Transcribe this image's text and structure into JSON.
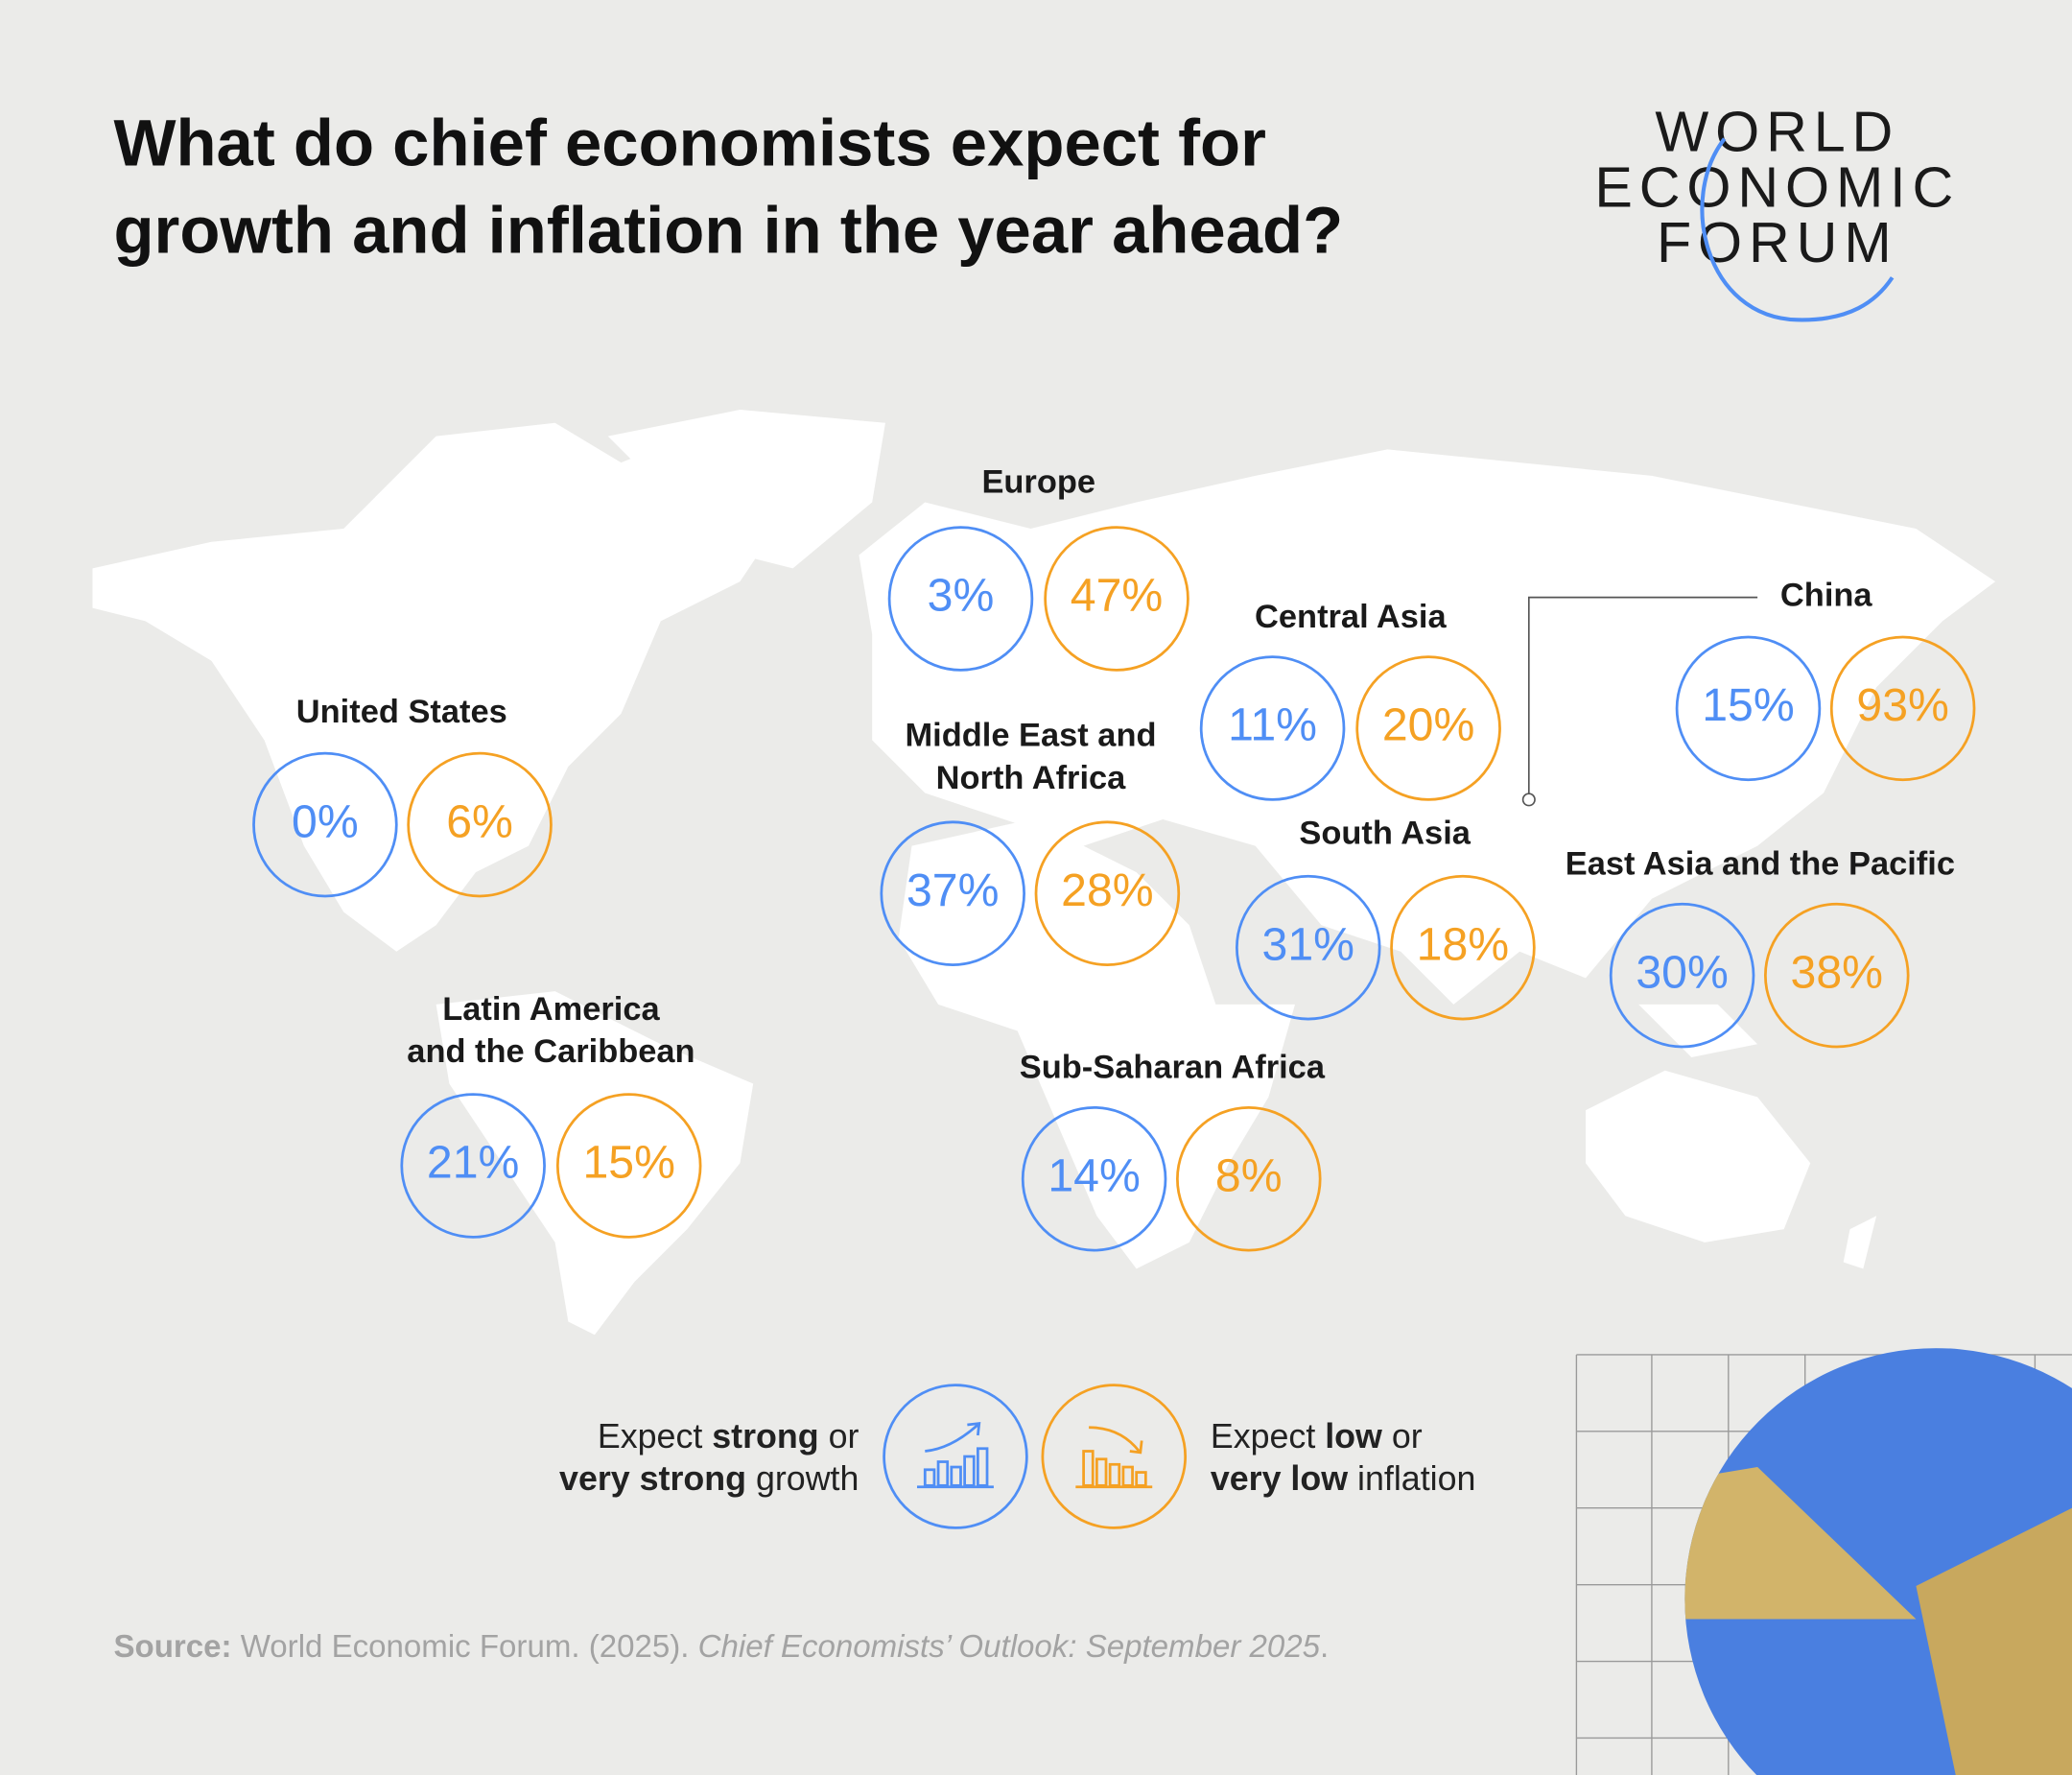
{
  "title": [
    "What do chief economists expect for",
    "growth and inflation in the year ahead?"
  ],
  "logo": [
    "WORLD",
    "ECONOMIC",
    "FORUM"
  ],
  "regions": [
    {
      "name": [
        "Europe"
      ],
      "growth": "3%",
      "inflation": "47%"
    },
    {
      "name": [
        "Central Asia"
      ],
      "growth": "11%",
      "inflation": "20%"
    },
    {
      "name": [
        "China"
      ],
      "growth": "15%",
      "inflation": "93%"
    },
    {
      "name": [
        "United States"
      ],
      "growth": "0%",
      "inflation": "6%"
    },
    {
      "name": [
        "Middle East and",
        "North Africa"
      ],
      "growth": "37%",
      "inflation": "28%"
    },
    {
      "name": [
        "South Asia"
      ],
      "growth": "31%",
      "inflation": "18%"
    },
    {
      "name": [
        "East Asia and the Pacific"
      ],
      "growth": "30%",
      "inflation": "38%"
    },
    {
      "name": [
        "Latin America",
        "and the Caribbean"
      ],
      "growth": "21%",
      "inflation": "15%"
    },
    {
      "name": [
        "Sub-Saharan Africa"
      ],
      "growth": "14%",
      "inflation": "8%"
    }
  ],
  "legend": {
    "growth": [
      [
        "Expect ",
        "strong",
        " or"
      ],
      [
        "very strong",
        " growth"
      ]
    ],
    "inflation": [
      [
        "Expect ",
        "low",
        " or"
      ],
      [
        "very low",
        " inflation"
      ]
    ]
  },
  "source": [
    "Source:",
    " World Economic Forum. (2025). ",
    "Chief Economists’ Outlook: September 2025",
    "."
  ]
}
